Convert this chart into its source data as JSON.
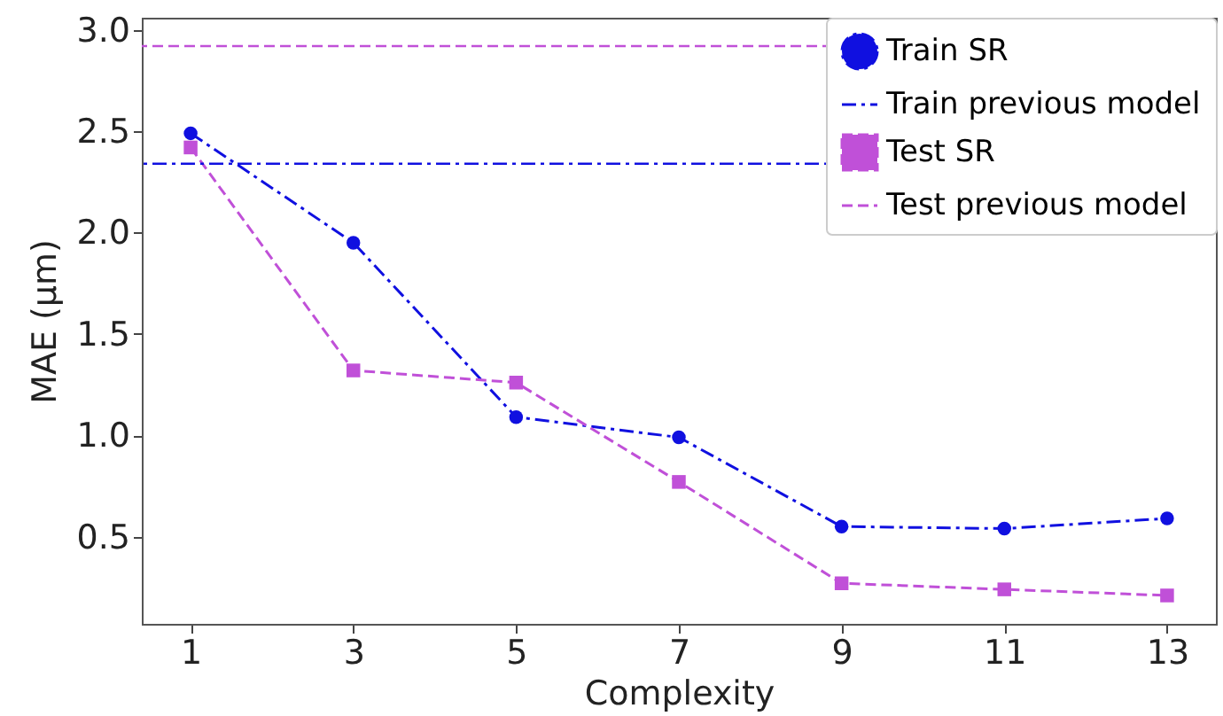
{
  "chart_data": {
    "type": "line",
    "xlabel": "Complexity",
    "ylabel": "MAE (μm)",
    "x": [
      1,
      3,
      5,
      7,
      9,
      11,
      13
    ],
    "series": [
      {
        "name": "Train SR",
        "color": "#1010e0",
        "values": [
          2.49,
          1.95,
          1.09,
          0.99,
          0.55,
          0.54,
          0.59
        ],
        "marker": "circle",
        "line_style": "dashdot"
      },
      {
        "name": "Test SR",
        "color": "#c050d8",
        "values": [
          2.42,
          1.32,
          1.26,
          0.77,
          0.27,
          0.24,
          0.21
        ],
        "marker": "square",
        "line_style": "dashed"
      }
    ],
    "ref_lines": [
      {
        "axis": "y",
        "value": 2.34,
        "label": "Train previous model",
        "color": "#1010e0",
        "line_style": "dashdot"
      },
      {
        "axis": "y",
        "value": 2.92,
        "label": "Test previous model",
        "color": "#c050d8",
        "line_style": "dashed"
      }
    ],
    "xlim": [
      0.4,
      13.6
    ],
    "xticks": [
      1,
      3,
      5,
      7,
      9,
      11,
      13
    ],
    "ylim": [
      0.07,
      3.06
    ],
    "yticks": [
      0.5,
      {
        "value": 1,
        "label": "1.0"
      },
      1.5,
      {
        "value": 2,
        "label": "2.0"
      },
      2.5,
      {
        "value": 3,
        "label": "3.0"
      }
    ],
    "grid": false,
    "legend": "top right"
  }
}
